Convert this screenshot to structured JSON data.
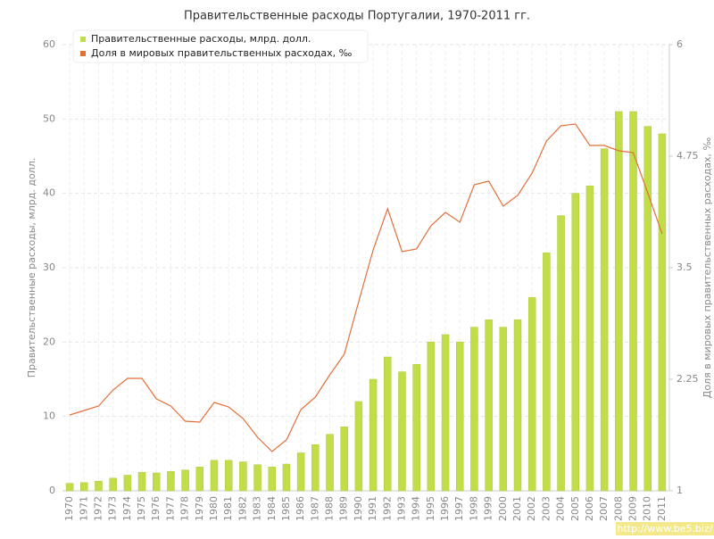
{
  "chart_data": {
    "type": "bar-line",
    "title": "Правительственные расходы Португалии, 1970-2011 гг.",
    "y_label": "Правительственные расходы, млрд. долл.",
    "y2_label": "Доля в мировых правительственных расходах, ‰",
    "categories": [
      "1970",
      "1971",
      "1972",
      "1973",
      "1974",
      "1975",
      "1976",
      "1977",
      "1978",
      "1979",
      "1980",
      "1981",
      "1982",
      "1983",
      "1984",
      "1985",
      "1986",
      "1987",
      "1988",
      "1989",
      "1990",
      "1991",
      "1992",
      "1993",
      "1994",
      "1995",
      "1996",
      "1997",
      "1998",
      "1999",
      "2000",
      "2001",
      "2002",
      "2003",
      "2004",
      "2005",
      "2006",
      "2007",
      "2008",
      "2009",
      "2010",
      "2011"
    ],
    "series": [
      {
        "name": "Правительственные расходы, млрд. долл.",
        "type": "bar",
        "color": "#c2dd4a",
        "values": [
          1.0,
          1.1,
          1.3,
          1.7,
          2.1,
          2.5,
          2.4,
          2.6,
          2.8,
          3.2,
          4.1,
          4.1,
          3.9,
          3.5,
          3.2,
          3.6,
          5.1,
          6.2,
          7.6,
          8.6,
          12,
          15,
          18,
          16,
          17,
          20,
          21,
          20,
          22,
          23,
          22,
          23,
          26,
          32,
          37,
          40,
          41,
          46,
          51,
          51,
          49,
          48
        ]
      },
      {
        "name": "Доля в мировых правительственных расходах, ‰",
        "type": "line",
        "axis": "y2",
        "color": "#e0703a",
        "values": [
          1.85,
          1.9,
          1.95,
          2.13,
          2.26,
          2.26,
          2.03,
          1.95,
          1.78,
          1.77,
          1.99,
          1.94,
          1.81,
          1.6,
          1.44,
          1.57,
          1.91,
          2.05,
          2.3,
          2.53,
          3.12,
          3.7,
          4.16,
          3.68,
          3.71,
          3.97,
          4.12,
          4.01,
          4.43,
          4.47,
          4.19,
          4.31,
          4.56,
          4.92,
          5.09,
          5.11,
          4.87,
          4.87,
          4.81,
          4.79,
          4.34,
          3.88
        ]
      }
    ],
    "ylim": [
      0,
      60
    ],
    "yticks": [
      0,
      10,
      20,
      30,
      40,
      50,
      60
    ],
    "y2lim": [
      1,
      6
    ],
    "y2ticks": [
      1,
      2.25,
      3.5,
      4.75,
      6
    ],
    "grid": true,
    "legend": "top-left",
    "watermark": "http://www.be5.biz/"
  }
}
